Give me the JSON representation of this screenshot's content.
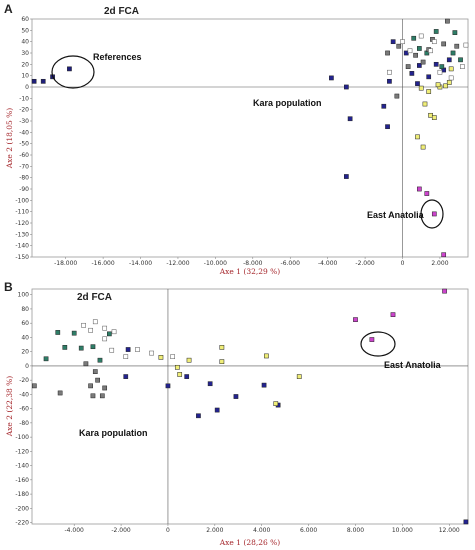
{
  "chart_data": [
    {
      "type": "scatter",
      "panel": "A",
      "title": "2d FCA",
      "xlabel": "Axe 1 (32,29 %)",
      "ylabel": "Axe 2 (18,05 %)",
      "xlim": [
        -19800,
        3500
      ],
      "ylim": [
        -150,
        60
      ],
      "xticks": [
        -18000,
        -16000,
        -14000,
        -12000,
        -10000,
        -8000,
        -6000,
        -4000,
        -2000,
        0,
        2000
      ],
      "xtick_labels": [
        "-18.000",
        "-16.000",
        "-14.000",
        "-12.000",
        "-10.000",
        "-8.000",
        "-6.000",
        "-4.000",
        "-2.000",
        "0",
        "2.000"
      ],
      "yticks": [
        60,
        50,
        40,
        30,
        20,
        10,
        0,
        -10,
        -20,
        -30,
        -40,
        -50,
        -60,
        -70,
        -80,
        -90,
        -100,
        -110,
        -120,
        -130,
        -140,
        -150
      ],
      "grid": false,
      "annotations": [
        {
          "label": "References",
          "x": -17500,
          "y": 17
        },
        {
          "label": "Kara population",
          "x": -2400,
          "y": -15
        },
        {
          "label": "East Anatolia",
          "x": 1500,
          "y": -110
        }
      ],
      "series": [
        {
          "group": "references",
          "color": "#1f1f7a",
          "points": [
            [
              -19700,
              5
            ],
            [
              -19200,
              5
            ],
            [
              -18700,
              9
            ],
            [
              -17800,
              16
            ]
          ]
        },
        {
          "group": "blue",
          "color": "#23238f",
          "points": [
            [
              -3800,
              8
            ],
            [
              -3000,
              0
            ],
            [
              -3000,
              -79
            ],
            [
              -2800,
              -28
            ],
            [
              -800,
              -35
            ],
            [
              -1000,
              -17
            ],
            [
              -700,
              5
            ],
            [
              -500,
              40
            ],
            [
              200,
              30
            ],
            [
              500,
              12
            ],
            [
              800,
              3
            ],
            [
              900,
              19
            ],
            [
              1400,
              9
            ],
            [
              1800,
              20
            ],
            [
              2200,
              15
            ],
            [
              2500,
              24
            ]
          ]
        },
        {
          "group": "yellow",
          "color": "#f0ee78",
          "points": [
            [
              1000,
              -1
            ],
            [
              1200,
              -15
            ],
            [
              1400,
              -4
            ],
            [
              1500,
              -25
            ],
            [
              1700,
              -27
            ],
            [
              2000,
              0
            ],
            [
              2300,
              1
            ],
            [
              2500,
              4
            ],
            [
              800,
              -44
            ],
            [
              1100,
              -53
            ],
            [
              1900,
              2
            ],
            [
              2600,
              16
            ]
          ]
        },
        {
          "group": "green",
          "color": "#2e7d67",
          "points": [
            [
              600,
              43
            ],
            [
              900,
              34
            ],
            [
              1300,
              30
            ],
            [
              1800,
              49
            ],
            [
              2100,
              18
            ],
            [
              2700,
              30
            ],
            [
              3100,
              24
            ],
            [
              2800,
              48
            ]
          ]
        },
        {
          "group": "grey",
          "color": "#7a7a7a",
          "points": [
            [
              -800,
              30
            ],
            [
              -200,
              36
            ],
            [
              300,
              18
            ],
            [
              700,
              28
            ],
            [
              1100,
              22
            ],
            [
              1600,
              42
            ],
            [
              2400,
              59
            ],
            [
              2900,
              36
            ],
            [
              -300,
              -8
            ],
            [
              2200,
              38
            ],
            [
              1400,
              33
            ]
          ]
        },
        {
          "group": "white",
          "color": "#ffffff",
          "points": [
            [
              -700,
              13
            ],
            [
              0,
              40
            ],
            [
              400,
              32
            ],
            [
              1000,
              45
            ],
            [
              1500,
              32
            ],
            [
              2000,
              13
            ],
            [
              2600,
              8
            ],
            [
              3200,
              18
            ],
            [
              3400,
              37
            ],
            [
              1700,
              40
            ]
          ]
        },
        {
          "group": "magenta",
          "color": "#cc44cc",
          "points": [
            [
              900,
              -90
            ],
            [
              1300,
              -94
            ],
            [
              1700,
              -112
            ],
            [
              2200,
              -148
            ]
          ]
        }
      ]
    },
    {
      "type": "scatter",
      "panel": "B",
      "title": "2d FCA",
      "xlabel": "Axe 1 (28,26 %)",
      "ylabel": "Axe 2 (22,38 %)",
      "xlim": [
        -5800,
        12800
      ],
      "ylim": [
        -222,
        108
      ],
      "xticks": [
        -4000,
        -2000,
        0,
        2000,
        4000,
        6000,
        8000,
        10000,
        12000
      ],
      "xtick_labels": [
        "-4.000",
        "-2.000",
        "0",
        "2.000",
        "4.000",
        "6.000",
        "8.000",
        "10.000",
        "12.000"
      ],
      "yticks": [
        100,
        80,
        60,
        40,
        20,
        0,
        -20,
        -40,
        -60,
        -80,
        -100,
        -120,
        -140,
        -160,
        -180,
        -200,
        -220
      ],
      "grid": false,
      "annotations": [
        {
          "label": "East Anatolia",
          "x": 8900,
          "y": 37
        },
        {
          "label": "Kara population",
          "x": -2600,
          "y": -95
        }
      ],
      "series": [
        {
          "group": "blue",
          "color": "#23238f",
          "points": [
            [
              -1700,
              23
            ],
            [
              -1800,
              -15
            ],
            [
              0,
              -28
            ],
            [
              800,
              -15
            ],
            [
              1300,
              -70
            ],
            [
              1800,
              -25
            ],
            [
              2100,
              -62
            ],
            [
              2900,
              -43
            ],
            [
              4100,
              -27
            ],
            [
              4700,
              -55
            ],
            [
              12800,
              -223
            ]
          ]
        },
        {
          "group": "yellow",
          "color": "#f0ee78",
          "points": [
            [
              -300,
              12
            ],
            [
              400,
              -2
            ],
            [
              500,
              -12
            ],
            [
              900,
              8
            ],
            [
              2300,
              26
            ],
            [
              2300,
              6
            ],
            [
              4200,
              14
            ],
            [
              4600,
              -53
            ],
            [
              5600,
              -15
            ]
          ]
        },
        {
          "group": "green",
          "color": "#2e7d67",
          "points": [
            [
              -5200,
              10
            ],
            [
              -4700,
              47
            ],
            [
              -4000,
              46
            ],
            [
              -3700,
              25
            ],
            [
              -3200,
              27
            ],
            [
              -2900,
              8
            ],
            [
              -2500,
              45
            ],
            [
              -4400,
              26
            ]
          ]
        },
        {
          "group": "grey",
          "color": "#7a7a7a",
          "points": [
            [
              -5700,
              -28
            ],
            [
              -4600,
              -38
            ],
            [
              -3300,
              -28
            ],
            [
              -3000,
              -20
            ],
            [
              -2700,
              -31
            ],
            [
              -3500,
              3
            ],
            [
              -3100,
              -8
            ],
            [
              -3200,
              -42
            ],
            [
              -2800,
              -42
            ]
          ]
        },
        {
          "group": "white",
          "color": "#ffffff",
          "points": [
            [
              -3100,
              62
            ],
            [
              -2700,
              53
            ],
            [
              -2300,
              48
            ],
            [
              -2700,
              38
            ],
            [
              -2400,
              22
            ],
            [
              -1300,
              23
            ],
            [
              -700,
              18
            ],
            [
              -1800,
              13
            ],
            [
              200,
              13
            ],
            [
              -3600,
              57
            ],
            [
              -3300,
              50
            ]
          ]
        },
        {
          "group": "magenta",
          "color": "#cc44cc",
          "points": [
            [
              8000,
              65
            ],
            [
              8700,
              37
            ],
            [
              9600,
              72
            ],
            [
              11800,
              107
            ]
          ]
        }
      ]
    }
  ]
}
